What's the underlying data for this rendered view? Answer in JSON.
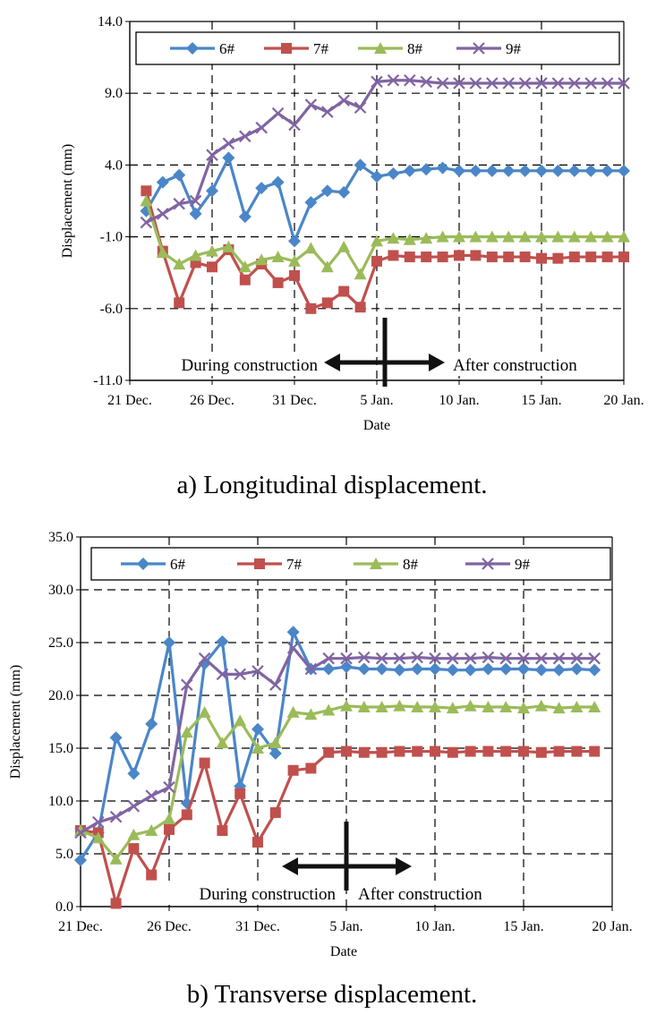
{
  "chart_data": [
    {
      "type": "line",
      "caption": "a) Longitudinal displacement.",
      "xlabel": "Date",
      "ylabel": "Displacement (mm)",
      "xlim": [
        21,
        51
      ],
      "ylim": [
        -11,
        14
      ],
      "yticks": [
        "-11.0",
        "-6.0",
        "-1.0",
        "4.0",
        "9.0",
        "14.0"
      ],
      "ytick_values": [
        -11,
        -6,
        -1,
        4,
        9,
        14
      ],
      "xticks": [
        "21 Dec.",
        "26 Dec.",
        "31 Dec.",
        "5 Jan.",
        "10 Jan.",
        "15 Jan.",
        "20 Jan."
      ],
      "xtick_values": [
        21,
        26,
        31,
        36,
        41,
        46,
        51
      ],
      "annotations": {
        "during": "During construction",
        "after": "After construction",
        "divider_x": 36.5,
        "divider_y": -5.5
      },
      "x": [
        22,
        23,
        24,
        25,
        26,
        27,
        28,
        29,
        30,
        31,
        32,
        33,
        34,
        35,
        36,
        37,
        38,
        39,
        40,
        41,
        42,
        43,
        44,
        45,
        46,
        47,
        48,
        49,
        50,
        51
      ],
      "series": [
        {
          "name": "6#",
          "color": "#4a86c8",
          "marker": "diamond",
          "values": [
            0.8,
            2.8,
            3.3,
            0.6,
            2.2,
            4.5,
            0.4,
            2.4,
            2.8,
            -1.3,
            1.4,
            2.2,
            2.1,
            4.0,
            3.2,
            3.4,
            3.6,
            3.7,
            3.8,
            3.6,
            3.6,
            3.6,
            3.6,
            3.6,
            3.6,
            3.6,
            3.6,
            3.6,
            3.6,
            3.6
          ]
        },
        {
          "name": "7#",
          "color": "#c0504d",
          "marker": "square",
          "values": [
            2.2,
            -2.0,
            -5.6,
            -2.8,
            -3.1,
            -1.9,
            -4.0,
            -2.9,
            -4.2,
            -3.7,
            -6.0,
            -5.6,
            -4.8,
            -5.9,
            -2.7,
            -2.3,
            -2.4,
            -2.4,
            -2.4,
            -2.3,
            -2.3,
            -2.4,
            -2.4,
            -2.4,
            -2.5,
            -2.5,
            -2.4,
            -2.4,
            -2.4,
            -2.4
          ]
        },
        {
          "name": "8#",
          "color": "#9bbb59",
          "marker": "triangle",
          "values": [
            1.5,
            -2.1,
            -2.9,
            -2.3,
            -2.0,
            -1.7,
            -3.1,
            -2.6,
            -2.4,
            -2.7,
            -1.8,
            -3.1,
            -1.7,
            -3.6,
            -1.3,
            -1.1,
            -1.2,
            -1.1,
            -1.0,
            -1.0,
            -1.0,
            -1.0,
            -1.0,
            -1.0,
            -1.0,
            -1.0,
            -1.0,
            -1.0,
            -1.0,
            -1.0
          ]
        },
        {
          "name": "9#",
          "color": "#8064a2",
          "marker": "x",
          "values": [
            0.0,
            0.6,
            1.3,
            1.5,
            4.7,
            5.5,
            6.0,
            6.6,
            7.6,
            6.8,
            8.2,
            7.7,
            8.5,
            8.0,
            9.8,
            9.9,
            9.9,
            9.8,
            9.7,
            9.7,
            9.7,
            9.7,
            9.7,
            9.7,
            9.7,
            9.7,
            9.7,
            9.7,
            9.7,
            9.7
          ]
        }
      ]
    },
    {
      "type": "line",
      "caption": "b) Transverse displacement.",
      "xlabel": "Date",
      "ylabel": "Displacement (mm)",
      "xlim": [
        21,
        51
      ],
      "ylim": [
        0,
        35
      ],
      "yticks": [
        "0.0",
        "5.0",
        "10.0",
        "15.0",
        "20.0",
        "25.0",
        "30.0",
        "35.0"
      ],
      "ytick_values": [
        0,
        5,
        10,
        15,
        20,
        25,
        30,
        35
      ],
      "xticks": [
        "21 Dec.",
        "26 Dec.",
        "31 Dec.",
        "5 Jan.",
        "10 Jan.",
        "15 Jan.",
        "20 Jan."
      ],
      "xtick_values": [
        21,
        26,
        31,
        36,
        41,
        46,
        51
      ],
      "annotations": {
        "during": "During construction",
        "after": "After construction",
        "divider_x": 36,
        "divider_y": 5.5
      },
      "x": [
        21,
        22,
        23,
        24,
        25,
        26,
        27,
        28,
        29,
        30,
        31,
        32,
        33,
        34,
        35,
        36,
        37,
        38,
        39,
        40,
        41,
        42,
        43,
        44,
        45,
        46,
        47,
        48,
        49,
        50
      ],
      "series": [
        {
          "name": "6#",
          "color": "#4a86c8",
          "marker": "diamond",
          "values": [
            4.4,
            7.0,
            16.0,
            12.6,
            17.3,
            25.0,
            9.8,
            23.0,
            25.1,
            11.4,
            16.8,
            14.5,
            26.0,
            22.5,
            22.5,
            22.7,
            22.5,
            22.5,
            22.4,
            22.5,
            22.5,
            22.4,
            22.4,
            22.5,
            22.5,
            22.5,
            22.4,
            22.4,
            22.5,
            22.4
          ]
        },
        {
          "name": "7#",
          "color": "#c0504d",
          "marker": "square",
          "values": [
            7.2,
            7.0,
            0.3,
            5.5,
            3.0,
            7.3,
            8.7,
            13.6,
            7.2,
            10.7,
            6.1,
            8.9,
            12.9,
            13.1,
            14.6,
            14.7,
            14.6,
            14.6,
            14.7,
            14.7,
            14.7,
            14.6,
            14.7,
            14.7,
            14.7,
            14.7,
            14.6,
            14.7,
            14.7,
            14.7
          ]
        },
        {
          "name": "8#",
          "color": "#9bbb59",
          "marker": "triangle",
          "values": [
            7.2,
            6.5,
            4.5,
            6.8,
            7.2,
            8.3,
            16.5,
            18.4,
            15.5,
            17.6,
            15.0,
            15.5,
            18.4,
            18.2,
            18.6,
            19.0,
            18.9,
            18.9,
            19.0,
            18.9,
            18.9,
            18.8,
            19.0,
            18.9,
            18.9,
            18.8,
            19.0,
            18.8,
            18.9,
            18.9
          ]
        },
        {
          "name": "9#",
          "color": "#8064a2",
          "marker": "x",
          "values": [
            7.0,
            8.0,
            8.5,
            9.5,
            10.5,
            11.3,
            21.0,
            23.5,
            22.0,
            22.0,
            22.3,
            21.0,
            24.5,
            22.5,
            23.5,
            23.5,
            23.6,
            23.5,
            23.5,
            23.6,
            23.5,
            23.5,
            23.5,
            23.6,
            23.5,
            23.5,
            23.5,
            23.5,
            23.5,
            23.5
          ]
        }
      ]
    }
  ]
}
